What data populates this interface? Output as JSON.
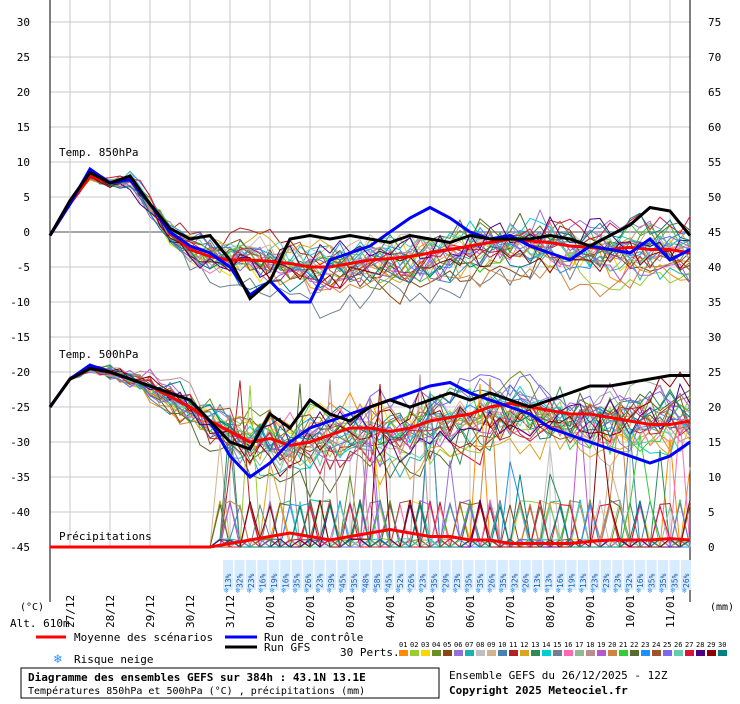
{
  "chart_data": {
    "type": "line",
    "title": "Diagramme des ensembles GEFS sur 384h : 43.1N 13.1E",
    "subtitle": "Températures 850hPa et 500hPa (°C) , précipitations (mm)",
    "run_info": "Ensemble GEFS du 26/12/2025 - 12Z",
    "copyright": "Copyright 2025 Meteociel.fr",
    "altitude": "Alt. 610m",
    "left_unit": "(°C)",
    "right_unit": "(mm)",
    "left_axis": {
      "ticks": [
        30,
        25,
        20,
        15,
        10,
        5,
        0,
        -5,
        -10,
        -15,
        -20,
        -25,
        -30,
        -35,
        -40,
        -45
      ],
      "range": [
        -45,
        30
      ]
    },
    "right_axis": {
      "ticks": [
        75,
        70,
        65,
        60,
        55,
        50,
        45,
        40,
        35,
        30,
        25,
        20,
        15,
        10,
        5,
        0
      ],
      "range": [
        0,
        75
      ]
    },
    "x_labels": [
      "27/12",
      "28/12",
      "29/12",
      "30/12",
      "31/12",
      "01/01",
      "02/01",
      "03/01",
      "04/01",
      "05/01",
      "06/01",
      "07/01",
      "08/01",
      "09/01",
      "10/01",
      "11/01"
    ],
    "x_range_hours": [
      0,
      384
    ],
    "panel_labels": {
      "t850": "Temp. 850hPa",
      "t500": "Temp. 500hPa",
      "precip": "Précipitations"
    },
    "snow_risk_percent": [
      "13%",
      "32%",
      "23%",
      "16%",
      "19%",
      "16%",
      "35%",
      "26%",
      "23%",
      "39%",
      "45%",
      "35%",
      "48%",
      "58%",
      "45%",
      "52%",
      "26%",
      "23%",
      "35%",
      "29%",
      "23%",
      "35%",
      "35%",
      "26%",
      "35%",
      "32%",
      "26%",
      "13%",
      "13%",
      "16%",
      "19%",
      "13%",
      "23%",
      "23%",
      "23%",
      "32%",
      "16%",
      "35%",
      "35%",
      "35%",
      "26%"
    ],
    "legend": {
      "mean": "Moyenne des scénarios",
      "control": "Run de contrôle",
      "gfs": "Run GFS",
      "snow": "Risque neige",
      "perts_label": "30 Perts.",
      "perts": [
        "01",
        "02",
        "03",
        "04",
        "05",
        "06",
        "07",
        "08",
        "09",
        "10",
        "11",
        "12",
        "13",
        "14",
        "15",
        "16",
        "17",
        "18",
        "19",
        "20",
        "21",
        "22",
        "23",
        "24",
        "25",
        "26",
        "27",
        "28",
        "29",
        "30"
      ],
      "colors": {
        "mean": "#ff0000",
        "control": "#0000ff",
        "gfs": "#000000"
      },
      "pert_colors": [
        "#ff8c00",
        "#9acd32",
        "#ffd700",
        "#6b8e23",
        "#8b4513",
        "#9370db",
        "#20b2aa",
        "#c0c0c0",
        "#d2b48c",
        "#4682b4",
        "#b22222",
        "#daa520",
        "#2e8b57",
        "#00ced1",
        "#708090",
        "#ff69b4",
        "#8fbc8f",
        "#bc8f8f",
        "#ba55d3",
        "#cd853f",
        "#32cd32",
        "#556b2f",
        "#1e90ff",
        "#a0522d",
        "#7b68ee",
        "#66cdaa",
        "#dc143c",
        "#4b0082",
        "#8b0000",
        "#008080"
      ]
    },
    "series": [
      {
        "name": "Moyenne des scénarios",
        "variable": "T850",
        "x": [
          0,
          12,
          24,
          36,
          48,
          60,
          72,
          84,
          96,
          108,
          120,
          132,
          144,
          156,
          168,
          180,
          192,
          204,
          216,
          228,
          240,
          252,
          264,
          276,
          288,
          300,
          312,
          324,
          336,
          348,
          360,
          372,
          384
        ],
        "y": [
          -0.5,
          4,
          8,
          7,
          7.5,
          4,
          0,
          -2.5,
          -3.5,
          -4,
          -4,
          -4.2,
          -4.5,
          -5,
          -5,
          -4.5,
          -4,
          -3.8,
          -3.5,
          -3,
          -2.5,
          -2,
          -1.5,
          -1,
          -1.3,
          -1.5,
          -2,
          -2.2,
          -2.5,
          -2.2,
          -2.5,
          -2.5,
          -3
        ]
      },
      {
        "name": "Run de contrôle",
        "variable": "T850",
        "x": [
          0,
          12,
          24,
          36,
          48,
          60,
          72,
          84,
          96,
          108,
          120,
          132,
          144,
          156,
          168,
          180,
          192,
          204,
          216,
          228,
          240,
          252,
          264,
          276,
          288,
          300,
          312,
          324,
          336,
          348,
          360,
          372,
          384
        ],
        "y": [
          -0.5,
          4,
          9,
          7,
          7.5,
          4,
          0,
          -2,
          -3,
          -5,
          -9,
          -7,
          -10,
          -10,
          -4,
          -3,
          -2,
          0,
          2,
          3.5,
          2,
          0,
          -1,
          -0.5,
          -2,
          -3,
          -4,
          -2,
          -2.5,
          -3,
          -1,
          -4,
          -2.5
        ]
      },
      {
        "name": "Run GFS",
        "variable": "T850",
        "x": [
          0,
          12,
          24,
          36,
          48,
          60,
          72,
          84,
          96,
          108,
          120,
          132,
          144,
          156,
          168,
          180,
          192,
          204,
          216,
          228,
          240,
          252,
          264,
          276,
          288,
          300,
          312,
          324,
          336,
          348,
          360,
          372,
          384
        ],
        "y": [
          -0.5,
          4.5,
          8.5,
          7,
          8,
          4,
          0.5,
          -1,
          -0.5,
          -4,
          -9.5,
          -7,
          -1,
          -0.5,
          -1,
          -0.5,
          -1,
          -1.5,
          -0.5,
          -1,
          -1.5,
          -0.5,
          -1,
          -1,
          -1,
          -0.5,
          -1,
          -2,
          -0.5,
          1,
          3.5,
          3,
          -0.5
        ]
      },
      {
        "name": "Moyenne des scénarios",
        "variable": "T500",
        "x": [
          0,
          12,
          24,
          36,
          48,
          60,
          72,
          84,
          96,
          108,
          120,
          132,
          144,
          156,
          168,
          180,
          192,
          204,
          216,
          228,
          240,
          252,
          264,
          276,
          288,
          300,
          312,
          324,
          336,
          348,
          360,
          372,
          384
        ],
        "y": [
          -25,
          -21,
          -19.5,
          -20,
          -21,
          -22,
          -23.5,
          -25,
          -27,
          -28.5,
          -30,
          -29.5,
          -30.5,
          -30,
          -29,
          -28,
          -28,
          -28.5,
          -28,
          -27,
          -26.5,
          -26,
          -25,
          -24.5,
          -25,
          -25.5,
          -26,
          -26,
          -26.5,
          -27,
          -27.5,
          -27.5,
          -27
        ]
      },
      {
        "name": "Run de contrôle",
        "variable": "T500",
        "x": [
          0,
          12,
          24,
          36,
          48,
          60,
          72,
          84,
          96,
          108,
          120,
          132,
          144,
          156,
          168,
          180,
          192,
          204,
          216,
          228,
          240,
          252,
          264,
          276,
          288,
          300,
          312,
          324,
          336,
          348,
          360,
          372,
          384
        ],
        "y": [
          -25,
          -21,
          -19,
          -20,
          -21,
          -22,
          -23,
          -24,
          -27,
          -32,
          -35,
          -33,
          -30,
          -28,
          -27,
          -26,
          -25,
          -24,
          -23,
          -22,
          -21.5,
          -23,
          -24,
          -25,
          -26,
          -28,
          -29,
          -30,
          -31,
          -32,
          -33,
          -32,
          -30
        ]
      },
      {
        "name": "Run GFS",
        "variable": "T500",
        "x": [
          0,
          12,
          24,
          36,
          48,
          60,
          72,
          84,
          96,
          108,
          120,
          132,
          144,
          156,
          168,
          180,
          192,
          204,
          216,
          228,
          240,
          252,
          264,
          276,
          288,
          300,
          312,
          324,
          336,
          348,
          360,
          372,
          384
        ],
        "y": [
          -25,
          -21,
          -19.5,
          -20,
          -21,
          -22,
          -23,
          -24,
          -27,
          -30,
          -31,
          -26,
          -28,
          -24,
          -26,
          -27,
          -25,
          -24,
          -25,
          -24,
          -23,
          -24,
          -23,
          -24,
          -25,
          -24,
          -23,
          -22,
          -22,
          -21.5,
          -21,
          -20.5,
          -20.5
        ]
      },
      {
        "name": "Moyenne des scénarios",
        "variable": "precip",
        "x": [
          0,
          24,
          48,
          72,
          96,
          108,
          120,
          132,
          144,
          156,
          168,
          180,
          192,
          204,
          216,
          228,
          240,
          252,
          264,
          276,
          288,
          300,
          312,
          324,
          336,
          348,
          360,
          372,
          384
        ],
        "y": [
          0,
          0,
          0,
          0,
          0,
          0.5,
          1,
          1.5,
          2,
          1.5,
          1,
          1.5,
          2,
          2.5,
          2,
          1.5,
          1.5,
          1,
          1,
          0.5,
          0.5,
          0.5,
          0.5,
          0.8,
          1,
          1,
          1,
          1.2,
          1
        ]
      }
    ]
  }
}
